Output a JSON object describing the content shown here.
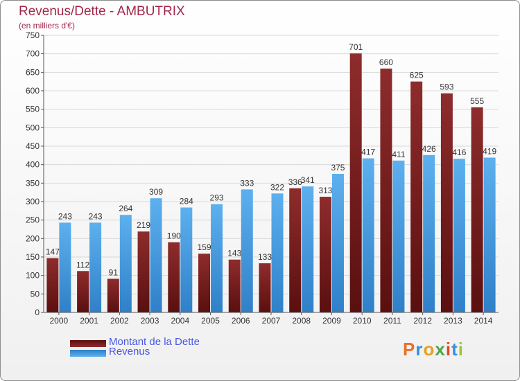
{
  "chart_data": {
    "type": "bar",
    "title": "Revenus/Dette - AMBUTRIX",
    "subtitle": "(en milliers d'€)",
    "categories": [
      "2000",
      "2001",
      "2002",
      "2003",
      "2004",
      "2005",
      "2006",
      "2007",
      "2008",
      "2009",
      "2010",
      "2011",
      "2012",
      "2013",
      "2014"
    ],
    "series": [
      {
        "name": "Montant de la Dette",
        "color": "#7a1c1c",
        "values": [
          147,
          112,
          91,
          219,
          190,
          159,
          143,
          133,
          336,
          313,
          701,
          660,
          625,
          593,
          555
        ]
      },
      {
        "name": "Revenus",
        "color": "#4a9fe3",
        "values": [
          243,
          243,
          264,
          309,
          284,
          293,
          333,
          322,
          341,
          375,
          417,
          411,
          426,
          416,
          419
        ]
      }
    ],
    "ylim": [
      0,
      750
    ],
    "yticks": [
      0,
      50,
      100,
      150,
      200,
      250,
      300,
      350,
      400,
      450,
      500,
      550,
      600,
      650,
      700,
      750
    ],
    "grid": true,
    "legend_position": "bottom-left"
  },
  "logo": {
    "text": "Proxiti",
    "colors": [
      "#e8702a",
      "#3a8fd8",
      "#e8a020",
      "#49a84a",
      "#e04a2a",
      "#3a8fd8",
      "#9ac43c"
    ]
  }
}
